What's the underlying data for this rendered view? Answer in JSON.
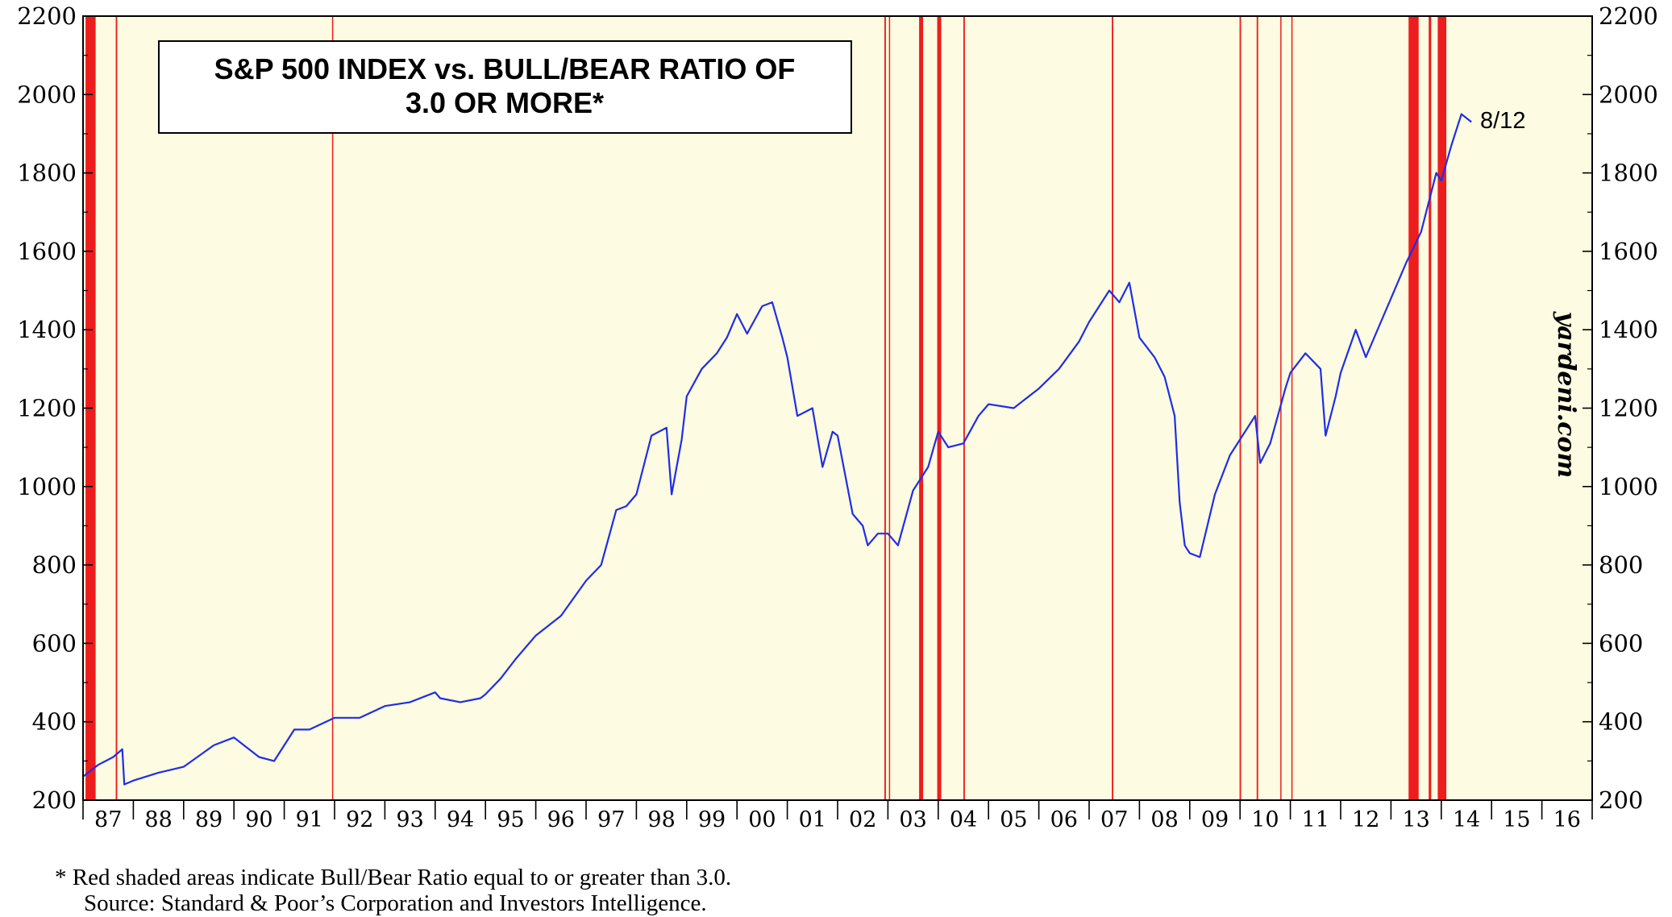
{
  "chart_data": {
    "type": "line",
    "title_line1": "S&P 500 INDEX vs. BULL/BEAR RATIO OF",
    "title_line2": "3.0 OR MORE*",
    "credit": "yardeni.com",
    "annotation": "8/12",
    "ylim": [
      200,
      2200
    ],
    "y_ticks": [
      "200",
      "400",
      "600",
      "800",
      "1000",
      "1200",
      "1400",
      "1600",
      "1800",
      "2000",
      "2200"
    ],
    "xlim": [
      1987.0,
      2017.0
    ],
    "x_tick_labels": [
      "87",
      "88",
      "89",
      "90",
      "91",
      "92",
      "93",
      "94",
      "95",
      "96",
      "97",
      "98",
      "99",
      "00",
      "01",
      "02",
      "03",
      "04",
      "05",
      "06",
      "07",
      "08",
      "09",
      "10",
      "11",
      "12",
      "13",
      "14",
      "15",
      "16"
    ],
    "series": [
      {
        "name": "S&P 500 Index",
        "color": "#1f2de8",
        "x": [
          1987.0,
          1987.3,
          1987.6,
          1987.78,
          1987.82,
          1988.0,
          1988.5,
          1989.0,
          1989.6,
          1990.0,
          1990.5,
          1990.8,
          1991.0,
          1991.2,
          1991.5,
          1992.0,
          1992.5,
          1993.0,
          1993.5,
          1994.0,
          1994.1,
          1994.5,
          1994.9,
          1995.0,
          1995.3,
          1995.6,
          1996.0,
          1996.5,
          1997.0,
          1997.3,
          1997.6,
          1997.8,
          1998.0,
          1998.3,
          1998.6,
          1998.7,
          1998.9,
          1999.0,
          1999.3,
          1999.6,
          1999.8,
          2000.0,
          2000.2,
          2000.5,
          2000.7,
          2000.9,
          2001.0,
          2001.2,
          2001.5,
          2001.7,
          2001.9,
          2002.0,
          2002.3,
          2002.5,
          2002.6,
          2002.8,
          2003.0,
          2003.2,
          2003.5,
          2003.8,
          2004.0,
          2004.2,
          2004.5,
          2004.8,
          2005.0,
          2005.5,
          2006.0,
          2006.4,
          2006.8,
          2007.0,
          2007.4,
          2007.6,
          2007.8,
          2008.0,
          2008.3,
          2008.5,
          2008.7,
          2008.8,
          2008.9,
          2009.0,
          2009.2,
          2009.5,
          2009.8,
          2010.0,
          2010.3,
          2010.4,
          2010.6,
          2010.9,
          2011.0,
          2011.3,
          2011.6,
          2011.7,
          2011.9,
          2012.0,
          2012.3,
          2012.5,
          2012.8,
          2013.0,
          2013.3,
          2013.6,
          2013.9,
          2014.0,
          2014.2,
          2014.4,
          2014.6
        ],
        "y": [
          260,
          290,
          310,
          330,
          240,
          250,
          270,
          285,
          340,
          360,
          310,
          300,
          340,
          380,
          380,
          410,
          410,
          440,
          450,
          475,
          460,
          450,
          460,
          470,
          510,
          560,
          620,
          670,
          760,
          800,
          940,
          950,
          980,
          1130,
          1150,
          980,
          1120,
          1230,
          1300,
          1340,
          1380,
          1440,
          1390,
          1460,
          1470,
          1380,
          1330,
          1180,
          1200,
          1050,
          1140,
          1130,
          930,
          900,
          850,
          880,
          880,
          850,
          990,
          1050,
          1140,
          1100,
          1110,
          1180,
          1210,
          1200,
          1250,
          1300,
          1370,
          1420,
          1500,
          1470,
          1520,
          1380,
          1330,
          1280,
          1180,
          960,
          850,
          830,
          820,
          980,
          1080,
          1120,
          1180,
          1060,
          1110,
          1250,
          1290,
          1340,
          1300,
          1130,
          1230,
          1290,
          1400,
          1330,
          1420,
          1480,
          1570,
          1650,
          1800,
          1780,
          1870,
          1950,
          1930
        ]
      }
    ],
    "bull_bear_periods": [
      [
        1987.05,
        1987.25
      ],
      [
        1987.65,
        1987.68
      ],
      [
        1991.95,
        1991.97
      ],
      [
        2002.93,
        2002.96
      ],
      [
        2003.02,
        2003.04
      ],
      [
        2003.62,
        2003.7
      ],
      [
        2003.98,
        2004.06
      ],
      [
        2004.5,
        2004.53
      ],
      [
        2007.45,
        2007.48
      ],
      [
        2009.99,
        2010.02
      ],
      [
        2010.33,
        2010.36
      ],
      [
        2010.8,
        2010.82
      ],
      [
        2011.02,
        2011.04
      ],
      [
        2013.35,
        2013.55
      ],
      [
        2013.75,
        2013.8
      ],
      [
        2013.93,
        2014.1
      ]
    ],
    "footnote_line1": "*   Red shaded areas indicate Bull/Bear Ratio equal to or greater than 3.0.",
    "footnote_line2": "Source: Standard & Poor’s Corporation and Investors Intelligence.",
    "colors": {
      "plot_bg": "#fdfbe1",
      "shade": "#ee1d1d",
      "line": "#1f2de8"
    }
  }
}
